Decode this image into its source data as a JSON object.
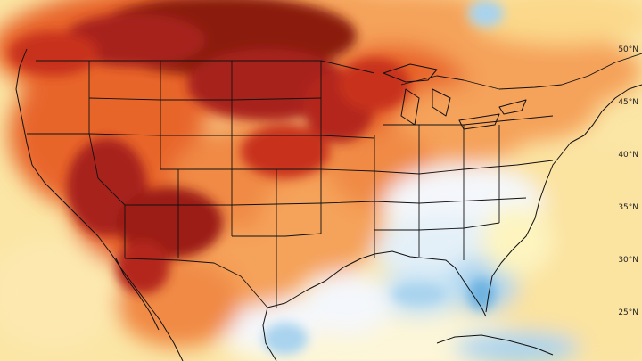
{
  "map": {
    "lat_labels": [
      "50°N",
      "45°N",
      "40°N",
      "35°N",
      "30°N",
      "25°N"
    ],
    "colors": {
      "very_hot": "#8b1a0e",
      "hot": "#c8321a",
      "warm_high": "#e8652c",
      "warm": "#f5a25a",
      "mild_warm": "#fbd88a",
      "near_normal": "#fdf4c0",
      "neutral": "#f4f7fb",
      "cool": "#d4e8f5",
      "cooler": "#a9d3ee",
      "cold": "#6fb3e0"
    }
  }
}
